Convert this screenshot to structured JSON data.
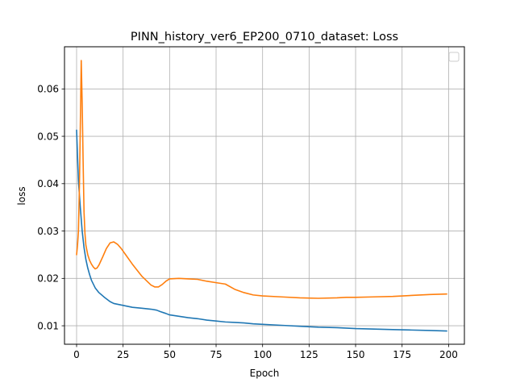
{
  "chart_data": {
    "type": "line",
    "title": "PINN_history_ver6_EP200_0710_dataset: Loss",
    "xlabel": "Epoch",
    "ylabel": "loss",
    "xlim": [
      -6.5,
      208.5
    ],
    "ylim": [
      0.0061,
      0.0689
    ],
    "grid": true,
    "legend": "upper right (empty)",
    "xticks": [
      0,
      25,
      50,
      75,
      100,
      125,
      150,
      175,
      200
    ],
    "yticks": [
      0.01,
      0.02,
      0.03,
      0.04,
      0.05,
      0.06
    ],
    "ytick_labels": [
      "0.01",
      "0.02",
      "0.03",
      "0.04",
      "0.05",
      "0.06"
    ],
    "series": [
      {
        "color": "#1f77b4",
        "x": [
          0,
          1,
          2,
          3,
          4,
          5,
          6,
          7,
          8,
          10,
          12,
          15,
          18,
          20,
          25,
          30,
          35,
          40,
          43,
          45,
          48,
          50,
          55,
          60,
          65,
          70,
          75,
          80,
          85,
          90,
          95,
          100,
          110,
          120,
          130,
          140,
          150,
          160,
          170,
          180,
          190,
          199
        ],
        "y": [
          0.0513,
          0.0405,
          0.035,
          0.03,
          0.0265,
          0.024,
          0.0222,
          0.0208,
          0.0196,
          0.018,
          0.017,
          0.016,
          0.0151,
          0.0147,
          0.0143,
          0.0139,
          0.0137,
          0.0135,
          0.0133,
          0.013,
          0.0126,
          0.0123,
          0.012,
          0.0117,
          0.0115,
          0.0112,
          0.011,
          0.0108,
          0.0107,
          0.0106,
          0.0104,
          0.0103,
          0.0101,
          0.0099,
          0.0097,
          0.0096,
          0.0094,
          0.0093,
          0.0092,
          0.0091,
          0.009,
          0.0089
        ]
      },
      {
        "color": "#ff7f0e",
        "x": [
          0,
          0.5,
          1,
          1.5,
          2,
          2.5,
          3,
          3.5,
          4,
          4.5,
          5,
          6,
          7,
          8,
          9,
          10,
          11,
          12,
          14,
          16,
          18,
          20,
          22,
          24,
          26,
          30,
          35,
          40,
          42,
          44,
          46,
          48,
          50,
          55,
          60,
          65,
          70,
          75,
          80,
          85,
          90,
          95,
          100,
          110,
          120,
          130,
          140,
          145,
          150,
          160,
          170,
          180,
          190,
          199
        ],
        "y": [
          0.025,
          0.027,
          0.03,
          0.039,
          0.052,
          0.066,
          0.057,
          0.045,
          0.034,
          0.0295,
          0.027,
          0.025,
          0.0238,
          0.023,
          0.0224,
          0.022,
          0.0222,
          0.0228,
          0.0245,
          0.0263,
          0.0275,
          0.0277,
          0.0272,
          0.0263,
          0.0252,
          0.023,
          0.0205,
          0.0186,
          0.0182,
          0.0182,
          0.0187,
          0.0194,
          0.0199,
          0.02,
          0.0199,
          0.0198,
          0.0194,
          0.0191,
          0.0188,
          0.0177,
          0.017,
          0.0165,
          0.0163,
          0.0161,
          0.0159,
          0.0158,
          0.0159,
          0.016,
          0.016,
          0.0161,
          0.0162,
          0.0164,
          0.0166,
          0.0167
        ]
      }
    ]
  }
}
